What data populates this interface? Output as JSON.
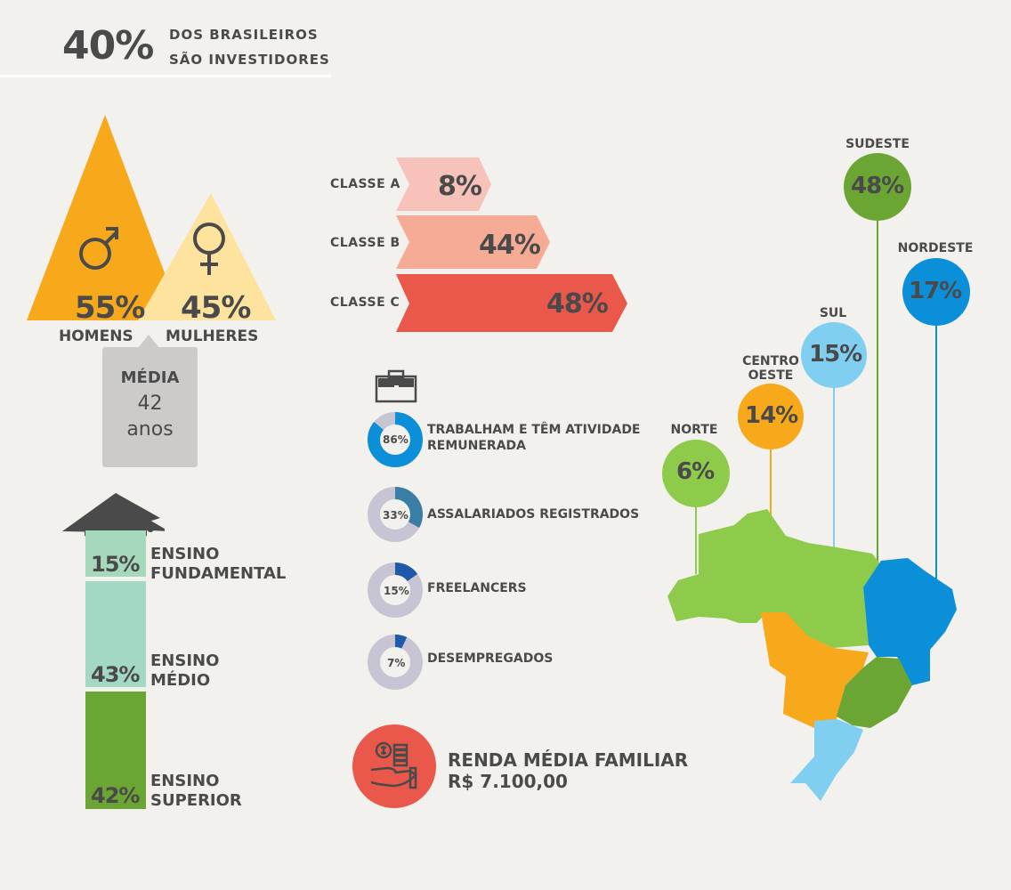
{
  "header": {
    "big": "40%",
    "line1": "DOS BRASILEIROS",
    "line2": "SÃO INVESTIDORES"
  },
  "colors": {
    "orange": "#f7a81b",
    "light_yellow": "#fde39e",
    "pink_light": "#f7c2ba",
    "salmon": "#f6ab95",
    "red": "#e9584a",
    "green_light": "#a6d9bb",
    "green_mid": "#a3d9c4",
    "green_dark": "#6ba533",
    "blue": "#0a8fd8",
    "sky": "#80cff0",
    "lime": "#8fcb4a",
    "navy": "#1e5aa8",
    "teal": "#3a7ea6",
    "grey_ring": "#c7c5d3",
    "bg": "#f3f1ee"
  },
  "chart_data": [
    {
      "type": "bar",
      "name": "gender",
      "categories": [
        "HOMENS",
        "MULHERES"
      ],
      "values": [
        55,
        45
      ],
      "value_labels": [
        "55%",
        "45%"
      ],
      "icons": [
        "male-icon",
        "female-icon"
      ],
      "average": {
        "title": "MÉDIA",
        "value": "42",
        "unit": "anos"
      }
    },
    {
      "type": "bar",
      "name": "social_class",
      "categories": [
        "CLASSE A",
        "CLASSE B",
        "CLASSE C"
      ],
      "values": [
        8,
        44,
        48
      ],
      "value_labels": [
        "8%",
        "44%",
        "48%"
      ]
    },
    {
      "type": "bar",
      "name": "education",
      "categories": [
        "ENSINO FUNDAMENTAL",
        "ENSINO MÉDIO",
        "ENSINO SUPERIOR"
      ],
      "label_lines": [
        [
          "ENSINO",
          "FUNDAMENTAL"
        ],
        [
          "ENSINO",
          "MÉDIO"
        ],
        [
          "ENSINO",
          "SUPERIOR"
        ]
      ],
      "values": [
        15,
        43,
        42
      ],
      "value_labels": [
        "15%",
        "43%",
        "42%"
      ]
    },
    {
      "type": "pie",
      "name": "employment",
      "categories": [
        "TRABALHAM E TÊM ATIVIDADE REMUNERADA",
        "ASSALARIADOS REGISTRADOS",
        "FREELANCERS",
        "DESEMPREGADOS"
      ],
      "label_lines": [
        [
          "TRABALHAM E TÊM ATIVIDADE",
          "REMUNERADA"
        ],
        [
          "ASSALARIADOS REGISTRADOS"
        ],
        [
          "FREELANCERS"
        ],
        [
          "DESEMPREGADOS"
        ]
      ],
      "values": [
        86,
        33,
        15,
        7
      ],
      "value_labels": [
        "86%",
        "33%",
        "15%",
        "7%"
      ]
    },
    {
      "type": "bar",
      "name": "regions",
      "categories": [
        "NORTE",
        "CENTRO OESTE",
        "SUL",
        "SUDESTE",
        "NORDESTE"
      ],
      "label_lines": [
        [
          "NORTE"
        ],
        [
          "CENTRO",
          "OESTE"
        ],
        [
          "SUL"
        ],
        [
          "SUDESTE"
        ],
        [
          "NORDESTE"
        ]
      ],
      "values": [
        6,
        14,
        15,
        48,
        17
      ],
      "value_labels": [
        "6%",
        "14%",
        "15%",
        "48%",
        "17%"
      ]
    }
  ],
  "renda": {
    "line1": "RENDA MÉDIA FAMILIAR",
    "line2": "R$ 7.100,00"
  }
}
